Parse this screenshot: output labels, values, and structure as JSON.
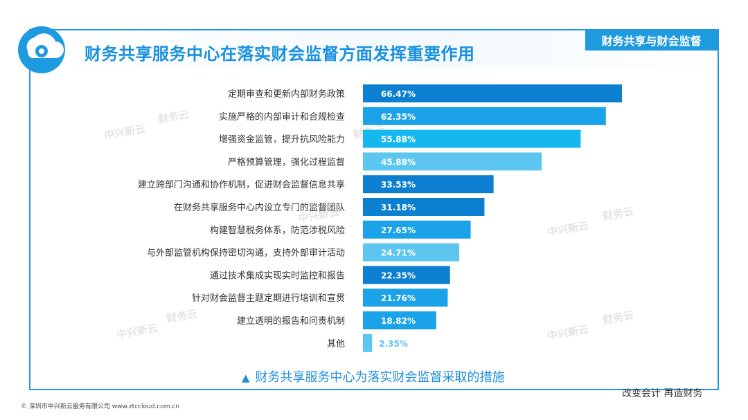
{
  "header": {
    "title": "财务共享服务中心在落实财会监督方面发挥重要作用",
    "tag": "财务共享与财会监督"
  },
  "caption": "财务共享服务中心为落实财会监督采取的措施",
  "slogan": "改变会计 再造财务",
  "footer": "© 深圳市中兴新云服务有限公司 www.ztccloud.com.cn",
  "watermark": {
    "left": "中兴新云",
    "right": "财务云"
  },
  "colors": {
    "accent": "#1e9be0",
    "bar_shades": [
      "#0d7fd0",
      "#1aa3e8",
      "#15b8ee",
      "#5cc6f0"
    ],
    "label_other": "#5cc6f0"
  },
  "chart_data": {
    "type": "bar",
    "orientation": "horizontal",
    "categories": [
      "定期审查和更新内部财务政策",
      "实施严格的内部审计和合规检查",
      "增强资金监管，提升抗风险能力",
      "严格预算管理，强化过程监督",
      "建立跨部门沟通和协作机制，促进财会监督信息共享",
      "在财务共享服务中心内设立专门的监督团队",
      "构建智慧税务体系，防范涉税风险",
      "与外部监管机构保持密切沟通，支持外部审计活动",
      "通过技术集成实现实时监控和报告",
      "针对财会监督主题定期进行培训和宣贯",
      "建立透明的报告和问责机制",
      "其他"
    ],
    "values": [
      66.47,
      62.35,
      55.88,
      45.88,
      33.53,
      31.18,
      27.65,
      24.71,
      22.35,
      21.76,
      18.82,
      2.35
    ],
    "value_labels": [
      "66.47%",
      "62.35%",
      "55.88%",
      "45.88%",
      "33.53%",
      "31.18%",
      "27.65%",
      "24.71%",
      "22.35%",
      "21.76%",
      "18.82%",
      "2.35%"
    ],
    "xlim": [
      0,
      100
    ],
    "grid": false,
    "legend": false,
    "xlabel": "",
    "ylabel": ""
  }
}
